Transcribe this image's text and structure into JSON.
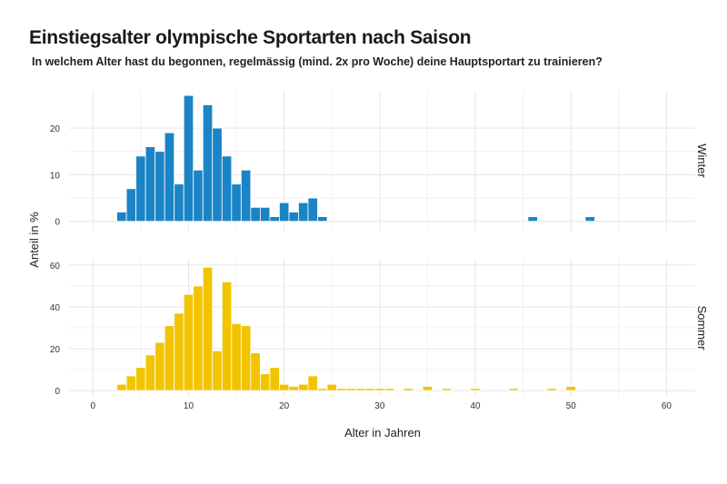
{
  "title": "Einstiegsalter olympische Sportarten nach Saison",
  "subtitle": "In welchem Alter hast du begonnen, regelmässig (mind. 2x pro Woche) deine Hauptsportart zu trainieren?",
  "chart_data": {
    "type": "bar",
    "title": "Einstiegsalter olympische Sportarten nach Saison",
    "subtitle": "In welchem Alter hast du begonnen, regelmässig (mind. 2x pro Woche) deine Hauptsportart zu trainieren?",
    "xlabel": "Alter in Jahren",
    "ylabel": "Anteil in %",
    "xlim": [
      -2.5,
      63
    ],
    "x_ticks": [
      0,
      10,
      20,
      30,
      40,
      50,
      60
    ],
    "grid": true,
    "panels": [
      {
        "name": "Winter",
        "color": "#1a84c6",
        "ylim": [
          -2,
          28
        ],
        "y_ticks": [
          0,
          10,
          20
        ],
        "x": [
          3,
          4,
          5,
          6,
          7,
          8,
          9,
          10,
          11,
          12,
          13,
          14,
          15,
          16,
          17,
          18,
          19,
          20,
          21,
          22,
          23,
          24,
          46,
          52
        ],
        "values": [
          2,
          7,
          14,
          16,
          15,
          19,
          8,
          27,
          11,
          25,
          20,
          14,
          8,
          11,
          3,
          3,
          1,
          4,
          2,
          4,
          5,
          1,
          1,
          1
        ]
      },
      {
        "name": "Sommer",
        "color": "#f2c400",
        "ylim": [
          -3,
          63
        ],
        "y_ticks": [
          0,
          20,
          40,
          60
        ],
        "x": [
          3,
          4,
          5,
          6,
          7,
          8,
          9,
          10,
          11,
          12,
          13,
          14,
          15,
          16,
          17,
          18,
          19,
          20,
          21,
          22,
          23,
          24,
          25,
          26,
          27,
          28,
          29,
          30,
          31,
          33,
          35,
          37,
          40,
          44,
          48,
          50
        ],
        "values": [
          3,
          7,
          11,
          17,
          23,
          31,
          37,
          46,
          50,
          59,
          19,
          52,
          32,
          31,
          18,
          8,
          11,
          3,
          2,
          3,
          7,
          1,
          3,
          1,
          1,
          1,
          1,
          1,
          1,
          1,
          2,
          1,
          1,
          1,
          1,
          2
        ]
      }
    ]
  }
}
